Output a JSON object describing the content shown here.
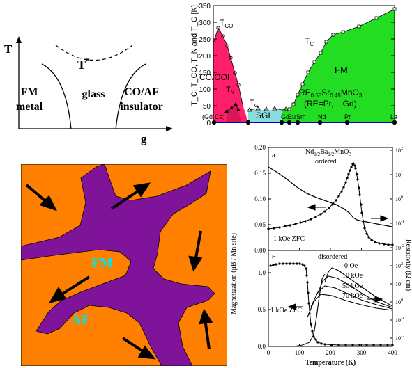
{
  "phase_schematic": {
    "y_axis": "T",
    "x_axis": "g",
    "tstar": "T",
    "tstar_sup": "*",
    "fm_line1": "FM",
    "fm_line2": "metal",
    "glass": "glass",
    "co_line1": "CO/AF",
    "co_line2": "insulator"
  },
  "phase_diagram": {
    "ylabel": "T_C, T_CO, T_N and T_G [K]",
    "y_ticks": [
      "0",
      "50",
      "100",
      "150",
      "200",
      "250",
      "300",
      "350"
    ],
    "tco_label": "T",
    "tco_sub": "CO",
    "tc_label": "T",
    "tc_sub": "C",
    "tn_label": "T",
    "tn_sub": "N",
    "tg_label": "T",
    "tg_sub": "G",
    "co_ooi": "CO/OOI",
    "sgi": "SGI",
    "fm": "FM",
    "formula_re": "RE",
    "formula_re_sub": "0.55",
    "formula_sr": "Sr",
    "formula_sr_sub": "0.45",
    "formula_mno": "MnO",
    "formula_mno_sub": "3",
    "formula_re_list": "(RE=Pr, ...Gd)",
    "x_labels": [
      "(Gd",
      "Ca)",
      "Gd",
      "Eu",
      "Sm",
      "Nd",
      "Pr",
      "La"
    ],
    "colors": {
      "co_region": "#ff1f6a",
      "fm_region": "#22dd22",
      "sgi_region": "#88dddd"
    }
  },
  "domain_picture": {
    "fm": "FM",
    "af": "AF",
    "colors": {
      "background": "#ff7f00",
      "af": "#7f139a",
      "fm_label": "#00e5e5"
    }
  },
  "nd_panel": {
    "a_label": "a",
    "formula_nd": "Nd",
    "formula_nd_sub": "1/2",
    "formula_ba": "Ba",
    "formula_ba_sub": "1/2",
    "formula_mno": "MnO",
    "formula_mno_sub": "3",
    "ordered": "ordered",
    "zfc_a": "1 kOe ZFC",
    "b_label": "b",
    "disordered": "disordered",
    "fields": [
      "0 Oe",
      "10 kOe",
      "50 kOe",
      "70 kOe"
    ],
    "zfc_b": "1 kOe ZFC",
    "xlabel": "Temperature (K)",
    "ylabel_left": "Magnetization (μB / Mn site)",
    "ylabel_right": "Resistivity (Ω cm)",
    "x_ticks": [
      "0",
      "100",
      "200",
      "300",
      "400"
    ],
    "a_y_ticks": [
      "0.00",
      "0.05",
      "0.10",
      "0.15",
      "0.20"
    ],
    "b_y_ticks": [
      "0.0",
      "0.5",
      "1.0"
    ],
    "log_ticks_base": "10",
    "a_log_exp": [
      "-2",
      "-1",
      "0",
      "1",
      "2"
    ],
    "b_log_exp": [
      "-2",
      "-1",
      "0",
      "1",
      "2"
    ]
  }
}
